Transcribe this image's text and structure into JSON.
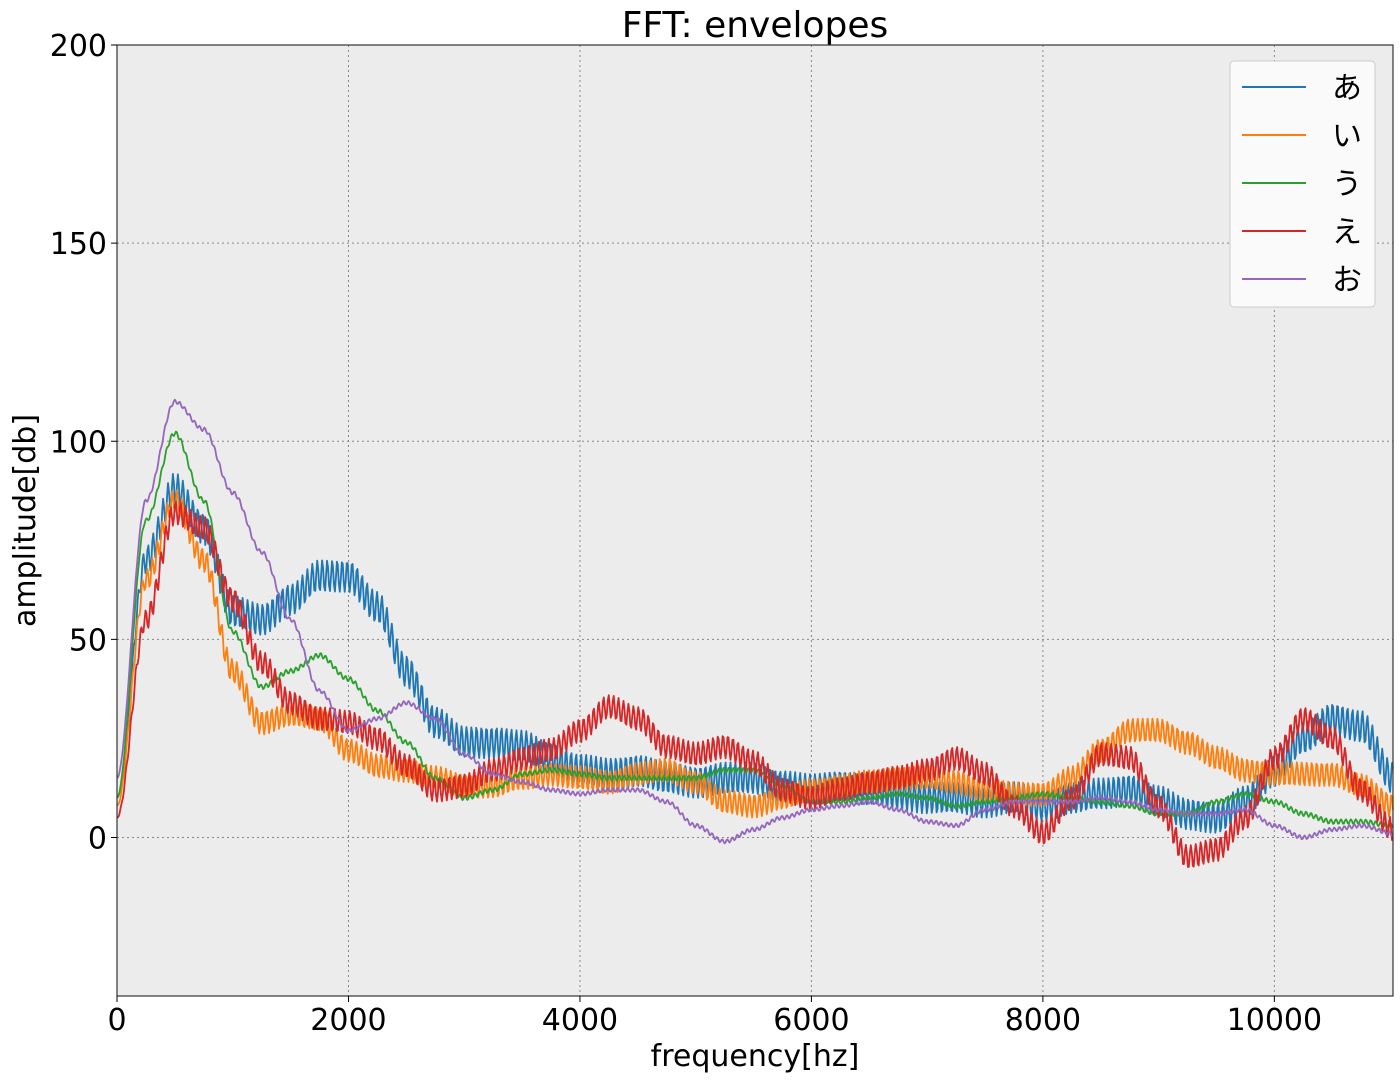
{
  "chart_data": {
    "type": "line",
    "title": "FFT: envelopes",
    "xlabel": "frequency[hz]",
    "ylabel": "amplitude[db]",
    "xlim": [
      0,
      11025
    ],
    "ylim": [
      -40,
      200
    ],
    "xticks": [
      0,
      2000,
      4000,
      6000,
      8000,
      10000
    ],
    "yticks": [
      0,
      50,
      100,
      150,
      200
    ],
    "grid": true,
    "legend_position": "top-right",
    "series": [
      {
        "name": "あ",
        "color": "#1f77b4",
        "x": [
          0,
          250,
          500,
          750,
          1000,
          1250,
          1500,
          1750,
          2000,
          2250,
          2500,
          2750,
          3000,
          3250,
          3500,
          3750,
          4000,
          4250,
          4500,
          4750,
          5000,
          5250,
          5500,
          5750,
          6000,
          6250,
          6500,
          6750,
          7000,
          7250,
          7500,
          7750,
          8000,
          8250,
          8500,
          8750,
          9000,
          9250,
          9500,
          9750,
          10000,
          10250,
          10500,
          10750,
          11025
        ],
        "y": [
          10,
          70,
          88,
          78,
          57,
          55,
          60,
          66,
          66,
          58,
          42,
          29,
          24,
          24,
          23,
          20,
          17,
          16,
          17,
          15,
          14,
          15,
          15,
          13,
          12,
          13,
          12,
          11,
          10,
          10,
          9,
          10,
          8,
          10,
          11,
          12,
          9,
          6,
          5,
          9,
          17,
          25,
          30,
          28,
          15
        ],
        "osc": 4
      },
      {
        "name": "い",
        "color": "#ff7f0e",
        "x": [
          0,
          250,
          500,
          750,
          1000,
          1250,
          1500,
          1750,
          2000,
          2250,
          2500,
          2750,
          3000,
          3250,
          3500,
          3750,
          4000,
          4250,
          4500,
          4750,
          5000,
          5250,
          5500,
          5750,
          6000,
          6250,
          6500,
          6750,
          7000,
          7250,
          7500,
          7750,
          8000,
          8250,
          8500,
          8750,
          9000,
          9250,
          9500,
          9750,
          10000,
          10250,
          10500,
          10750,
          11025
        ],
        "y": [
          8,
          65,
          85,
          70,
          42,
          29,
          31,
          30,
          22,
          18,
          17,
          15,
          13,
          13,
          15,
          16,
          15,
          14,
          16,
          17,
          14,
          9,
          8,
          10,
          12,
          13,
          14,
          15,
          15,
          14,
          12,
          11,
          11,
          15,
          22,
          27,
          27,
          24,
          20,
          17,
          16,
          16,
          16,
          13,
          8
        ],
        "osc": 3
      },
      {
        "name": "う",
        "color": "#2ca02c",
        "x": [
          0,
          250,
          500,
          750,
          1000,
          1250,
          1500,
          1750,
          2000,
          2250,
          2500,
          2750,
          3000,
          3250,
          3500,
          3750,
          4000,
          4250,
          4500,
          4750,
          5000,
          5250,
          5500,
          5750,
          6000,
          6250,
          6500,
          6750,
          7000,
          7250,
          7500,
          7750,
          8000,
          8250,
          8500,
          8750,
          9000,
          9250,
          9500,
          9750,
          10000,
          10250,
          10500,
          10750,
          11025
        ],
        "y": [
          10,
          80,
          102,
          85,
          52,
          38,
          42,
          46,
          40,
          32,
          24,
          15,
          10,
          12,
          16,
          17,
          16,
          15,
          15,
          15,
          15,
          17,
          17,
          13,
          9,
          9,
          10,
          11,
          10,
          8,
          9,
          10,
          11,
          10,
          9,
          8,
          6,
          6,
          9,
          11,
          9,
          6,
          4,
          4,
          3
        ],
        "osc": 0.6
      },
      {
        "name": "え",
        "color": "#d62728",
        "x": [
          0,
          250,
          500,
          750,
          1000,
          1250,
          1500,
          1750,
          2000,
          2250,
          2500,
          2750,
          3000,
          3250,
          3500,
          3750,
          4000,
          4250,
          4500,
          4750,
          5000,
          5250,
          5500,
          5750,
          6000,
          6250,
          6500,
          6750,
          7000,
          7250,
          7500,
          7750,
          8000,
          8250,
          8500,
          8750,
          9000,
          9250,
          9500,
          9750,
          10000,
          10250,
          10500,
          10750,
          11025
        ],
        "y": [
          5,
          55,
          82,
          78,
          60,
          44,
          34,
          30,
          29,
          25,
          18,
          12,
          13,
          17,
          20,
          22,
          27,
          33,
          30,
          23,
          21,
          23,
          19,
          12,
          10,
          12,
          14,
          15,
          17,
          20,
          16,
          8,
          1,
          10,
          21,
          20,
          8,
          -5,
          -3,
          5,
          20,
          30,
          25,
          12,
          2
        ],
        "osc": 3
      },
      {
        "name": "お",
        "color": "#9467bd",
        "x": [
          0,
          250,
          500,
          750,
          1000,
          1250,
          1500,
          1750,
          2000,
          2250,
          2500,
          2750,
          3000,
          3250,
          3500,
          3750,
          4000,
          4250,
          4500,
          4750,
          5000,
          5250,
          5500,
          5750,
          6000,
          6250,
          6500,
          6750,
          7000,
          7250,
          7500,
          7750,
          8000,
          8250,
          8500,
          8750,
          9000,
          9250,
          9500,
          9750,
          10000,
          10250,
          10500,
          10750,
          11025
        ],
        "y": [
          15,
          85,
          110,
          103,
          87,
          72,
          55,
          37,
          27,
          30,
          34,
          30,
          21,
          16,
          14,
          12,
          11,
          12,
          12,
          9,
          3,
          -1,
          2,
          5,
          7,
          8,
          9,
          7,
          4,
          3,
          7,
          9,
          9,
          9,
          10,
          9,
          7,
          6,
          6,
          7,
          3,
          0,
          2,
          3,
          1
        ],
        "osc": 0.5
      }
    ]
  }
}
